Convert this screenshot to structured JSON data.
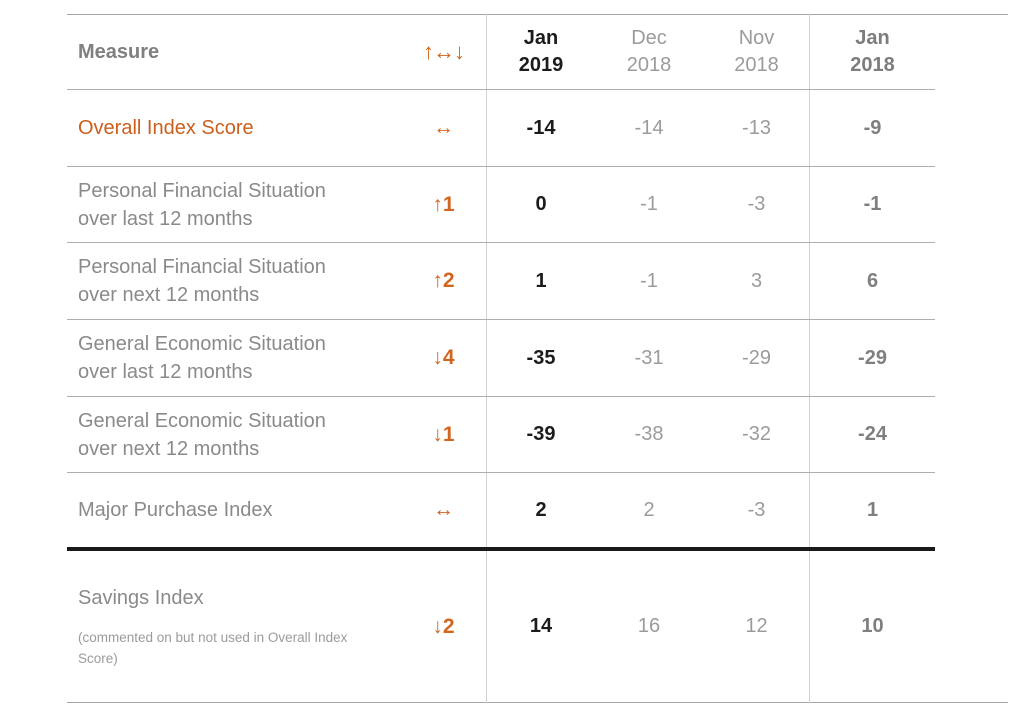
{
  "colors": {
    "accent_orange": "#d2651f",
    "measure_gray": "#8a8a8a",
    "current_value_black": "#1c1c1c",
    "prior_value_gray": "#9b9b9b",
    "year_ago_value_gray": "#7f7f7f"
  },
  "chart_data": {
    "type": "table",
    "header": {
      "measure": "Measure",
      "change_legend": "↑↔↓",
      "periods": [
        {
          "month": "Jan",
          "year": "2019",
          "emphasis": "current"
        },
        {
          "month": "Dec",
          "year": "2018",
          "emphasis": "none"
        },
        {
          "month": "Nov",
          "year": "2018",
          "emphasis": "none"
        },
        {
          "month": "Jan",
          "year": "2018",
          "emphasis": "year-ago"
        }
      ]
    },
    "rows": [
      {
        "measure": "Overall Index Score",
        "highlight": true,
        "change": "↔",
        "values": [
          -14,
          -14,
          -13,
          -9
        ]
      },
      {
        "measure": "Personal Financial Situation over last 12 months",
        "highlight": false,
        "change": "↑1",
        "values": [
          0,
          -1,
          -3,
          -1
        ]
      },
      {
        "measure": "Personal Financial Situation over next 12 months",
        "highlight": false,
        "change": "↑2",
        "values": [
          1,
          -1,
          3,
          6
        ]
      },
      {
        "measure": "General Economic Situation over last 12 months",
        "highlight": false,
        "change": "↓4",
        "values": [
          -35,
          -31,
          -29,
          -29
        ]
      },
      {
        "measure": "General Economic Situation over next 12 months",
        "highlight": false,
        "change": "↓1",
        "values": [
          -39,
          -38,
          -32,
          -24
        ]
      },
      {
        "measure": "Major Purchase Index",
        "highlight": false,
        "change": "↔",
        "values": [
          2,
          2,
          -3,
          1
        ]
      },
      {
        "measure": "Savings Index",
        "note": "(commented on but not used in Overall Index Score)",
        "highlight": false,
        "change": "↓2",
        "values": [
          14,
          16,
          12,
          10
        ]
      }
    ]
  }
}
